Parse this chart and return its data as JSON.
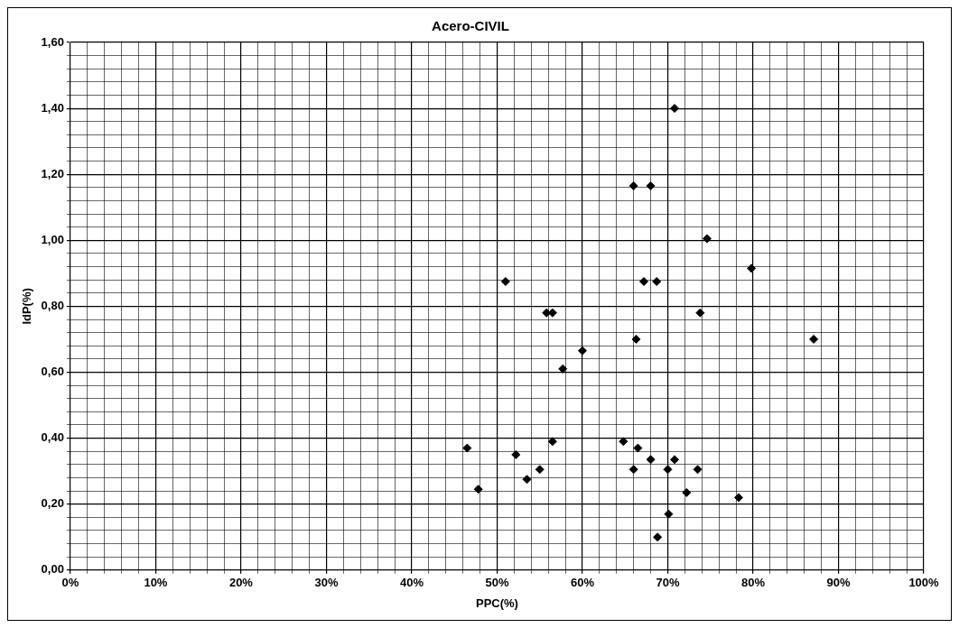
{
  "chart_data": {
    "type": "scatter",
    "title": "Acero-CIVIL",
    "xlabel": "PPC(%)",
    "ylabel": "IdP(%)",
    "series": [
      {
        "color": "#000000",
        "x": [
          46.5,
          47.8,
          51,
          52.2,
          53.5,
          55,
          55.8,
          56.5,
          56.5,
          57.7,
          60,
          64.8,
          66,
          66,
          66.3,
          66.5,
          67.2,
          68,
          68,
          68.7,
          68.8,
          70,
          70.1,
          70.8,
          70.8,
          72.2,
          73.5,
          73.8,
          74.6,
          78.3,
          79.8,
          87.1
        ],
        "values": [
          0.37,
          0.245,
          0.875,
          0.35,
          0.275,
          0.305,
          0.78,
          0.78,
          0.39,
          0.61,
          0.665,
          0.39,
          1.165,
          0.305,
          0.7,
          0.37,
          0.875,
          1.165,
          0.335,
          0.875,
          0.1,
          0.305,
          0.17,
          0.335,
          1.4,
          0.235,
          0.305,
          0.78,
          1.005,
          0.22,
          0.915,
          0.7
        ]
      }
    ],
    "xlim": [
      0,
      100
    ],
    "xticks": [
      {
        "value": 0,
        "label": "0%"
      },
      {
        "value": 2,
        "label": null
      },
      {
        "value": 4,
        "label": null
      },
      {
        "value": 6,
        "label": null
      },
      {
        "value": 8,
        "label": null
      },
      {
        "value": 10,
        "label": "10%"
      },
      {
        "value": 12,
        "label": null
      },
      {
        "value": 14,
        "label": null
      },
      {
        "value": 16,
        "label": null
      },
      {
        "value": 18,
        "label": null
      },
      {
        "value": 20,
        "label": "20%"
      },
      {
        "value": 22,
        "label": null
      },
      {
        "value": 24,
        "label": null
      },
      {
        "value": 26,
        "label": null
      },
      {
        "value": 28,
        "label": null
      },
      {
        "value": 30,
        "label": "30%"
      },
      {
        "value": 32,
        "label": null
      },
      {
        "value": 34,
        "label": null
      },
      {
        "value": 36,
        "label": null
      },
      {
        "value": 38,
        "label": null
      },
      {
        "value": 40,
        "label": "40%"
      },
      {
        "value": 42,
        "label": null
      },
      {
        "value": 44,
        "label": null
      },
      {
        "value": 46,
        "label": null
      },
      {
        "value": 48,
        "label": null
      },
      {
        "value": 50,
        "label": "50%"
      },
      {
        "value": 52,
        "label": null
      },
      {
        "value": 54,
        "label": null
      },
      {
        "value": 56,
        "label": null
      },
      {
        "value": 58,
        "label": null
      },
      {
        "value": 60,
        "label": "60%"
      },
      {
        "value": 62,
        "label": null
      },
      {
        "value": 64,
        "label": null
      },
      {
        "value": 66,
        "label": null
      },
      {
        "value": 68,
        "label": null
      },
      {
        "value": 70,
        "label": "70%"
      },
      {
        "value": 72,
        "label": null
      },
      {
        "value": 74,
        "label": null
      },
      {
        "value": 76,
        "label": null
      },
      {
        "value": 78,
        "label": null
      },
      {
        "value": 80,
        "label": "80%"
      },
      {
        "value": 82,
        "label": null
      },
      {
        "value": 84,
        "label": null
      },
      {
        "value": 86,
        "label": null
      },
      {
        "value": 88,
        "label": null
      },
      {
        "value": 90,
        "label": "90%"
      },
      {
        "value": 92,
        "label": null
      },
      {
        "value": 94,
        "label": null
      },
      {
        "value": 96,
        "label": null
      },
      {
        "value": 98,
        "label": null
      },
      {
        "value": 100,
        "label": "100%"
      }
    ],
    "ylim": [
      0,
      1.6
    ],
    "yticks": [
      {
        "value": 0,
        "label": "0,00"
      },
      {
        "value": 0.04,
        "label": null
      },
      {
        "value": 0.08,
        "label": null
      },
      {
        "value": 0.12,
        "label": null
      },
      {
        "value": 0.16,
        "label": null
      },
      {
        "value": 0.2,
        "label": "0,20"
      },
      {
        "value": 0.24,
        "label": null
      },
      {
        "value": 0.28,
        "label": null
      },
      {
        "value": 0.32,
        "label": null
      },
      {
        "value": 0.36,
        "label": null
      },
      {
        "value": 0.4,
        "label": "0,40"
      },
      {
        "value": 0.44,
        "label": null
      },
      {
        "value": 0.48,
        "label": null
      },
      {
        "value": 0.52,
        "label": null
      },
      {
        "value": 0.56,
        "label": null
      },
      {
        "value": 0.6,
        "label": "0,60"
      },
      {
        "value": 0.64,
        "label": null
      },
      {
        "value": 0.68,
        "label": null
      },
      {
        "value": 0.72,
        "label": null
      },
      {
        "value": 0.76,
        "label": null
      },
      {
        "value": 0.8,
        "label": "0,80"
      },
      {
        "value": 0.84,
        "label": null
      },
      {
        "value": 0.88,
        "label": null
      },
      {
        "value": 0.92,
        "label": null
      },
      {
        "value": 0.96,
        "label": null
      },
      {
        "value": 1,
        "label": "1,00"
      },
      {
        "value": 1.04,
        "label": null
      },
      {
        "value": 1.08,
        "label": null
      },
      {
        "value": 1.12,
        "label": null
      },
      {
        "value": 1.16,
        "label": null
      },
      {
        "value": 1.2,
        "label": "1,20"
      },
      {
        "value": 1.24,
        "label": null
      },
      {
        "value": 1.28,
        "label": null
      },
      {
        "value": 1.32,
        "label": null
      },
      {
        "value": 1.36,
        "label": null
      },
      {
        "value": 1.4,
        "label": "1,40"
      },
      {
        "value": 1.44,
        "label": null
      },
      {
        "value": 1.48,
        "label": null
      },
      {
        "value": 1.52,
        "label": null
      },
      {
        "value": 1.56,
        "label": null
      },
      {
        "value": 1.6,
        "label": "1,60"
      }
    ],
    "grid": true,
    "marker": "diamond"
  }
}
